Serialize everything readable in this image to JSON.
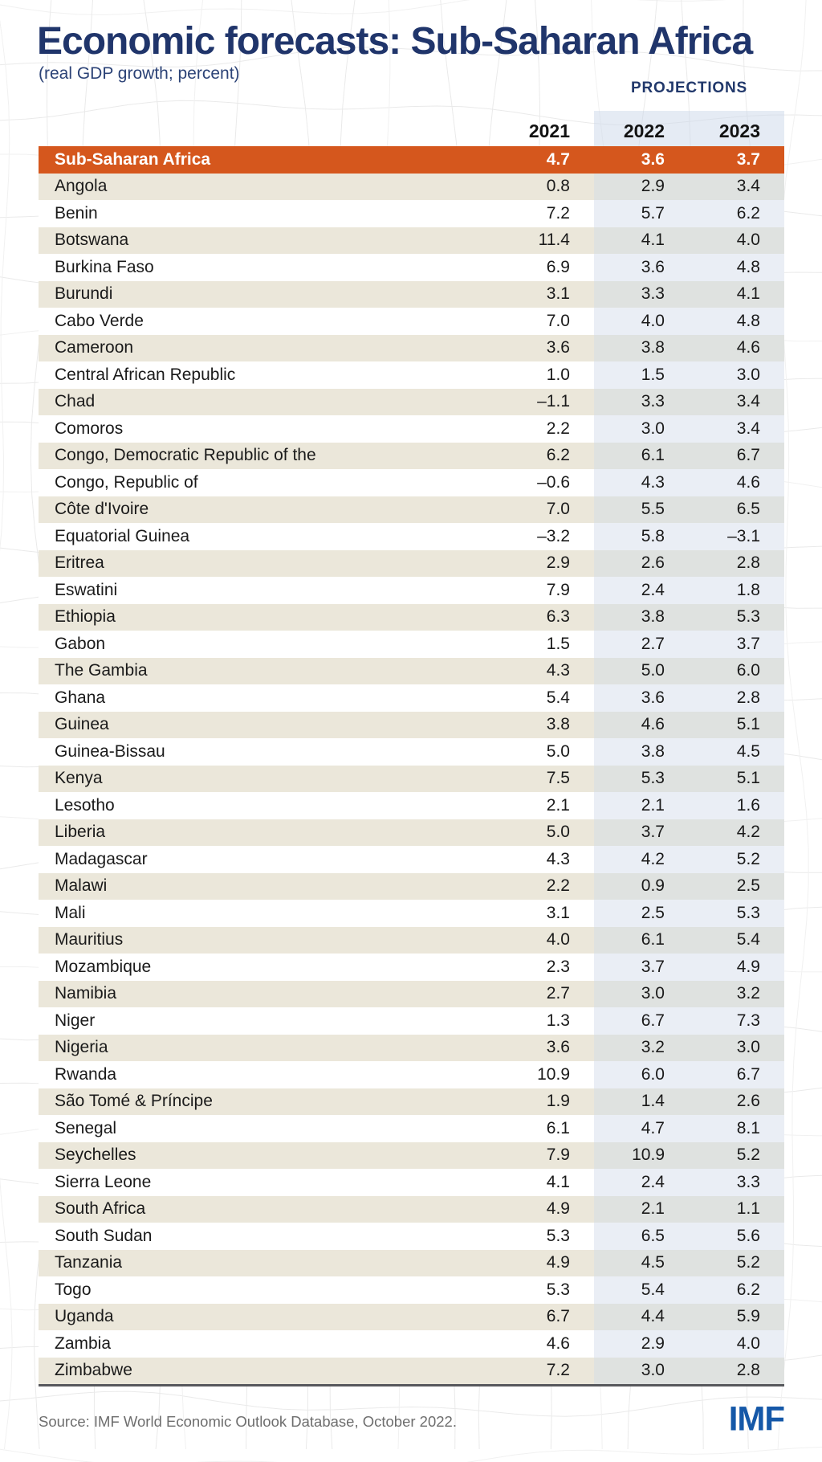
{
  "header": {
    "title": "Economic forecasts: Sub-Saharan Africa",
    "subtitle": "(real GDP growth; percent)"
  },
  "footer": {
    "source": "Source: IMF World Economic Outlook Database, October 2022.",
    "logo": "IMF"
  },
  "colors": {
    "accent_orange": "#D5571D",
    "title_navy": "#20356B",
    "subtitle_blue": "#2C4377",
    "projections_navy": "#21386B",
    "beige_row": "#EBE7DA",
    "beige_projection_cell": "#DFE2E0",
    "white_projection_cell": "#EAEEF5",
    "header_band_blue": "#CBD7E9",
    "bottom_border": "#57585C",
    "source_gray": "#6E6E6E",
    "logo_blue": "#1558A8"
  },
  "chart_data": {
    "type": "table",
    "title": "Economic forecasts: Sub-Saharan Africa",
    "subtitle": "(real GDP growth; percent)",
    "unit": "real GDP growth, percent",
    "projections_label": "PROJECTIONS",
    "columns": [
      "2021",
      "2022",
      "2023"
    ],
    "projection_columns": [
      "2022",
      "2023"
    ],
    "summary_row": {
      "label": "Sub-Saharan Africa",
      "values": [
        4.7,
        3.6,
        3.7
      ]
    },
    "rows": [
      [
        "Angola",
        0.8,
        2.9,
        3.4
      ],
      [
        "Benin",
        7.2,
        5.7,
        6.2
      ],
      [
        "Botswana",
        11.4,
        4.1,
        4.0
      ],
      [
        "Burkina Faso",
        6.9,
        3.6,
        4.8
      ],
      [
        "Burundi",
        3.1,
        3.3,
        4.1
      ],
      [
        "Cabo Verde",
        7.0,
        4.0,
        4.8
      ],
      [
        "Cameroon",
        3.6,
        3.8,
        4.6
      ],
      [
        "Central African Republic",
        1.0,
        1.5,
        3.0
      ],
      [
        "Chad",
        -1.1,
        3.3,
        3.4
      ],
      [
        "Comoros",
        2.2,
        3.0,
        3.4
      ],
      [
        "Congo, Democratic Republic of the",
        6.2,
        6.1,
        6.7
      ],
      [
        "Congo, Republic of",
        -0.6,
        4.3,
        4.6
      ],
      [
        "Côte d'Ivoire",
        7.0,
        5.5,
        6.5
      ],
      [
        "Equatorial Guinea",
        -3.2,
        5.8,
        -3.1
      ],
      [
        "Eritrea",
        2.9,
        2.6,
        2.8
      ],
      [
        "Eswatini",
        7.9,
        2.4,
        1.8
      ],
      [
        "Ethiopia",
        6.3,
        3.8,
        5.3
      ],
      [
        "Gabon",
        1.5,
        2.7,
        3.7
      ],
      [
        "The Gambia",
        4.3,
        5.0,
        6.0
      ],
      [
        "Ghana",
        5.4,
        3.6,
        2.8
      ],
      [
        "Guinea",
        3.8,
        4.6,
        5.1
      ],
      [
        "Guinea-Bissau",
        5.0,
        3.8,
        4.5
      ],
      [
        "Kenya",
        7.5,
        5.3,
        5.1
      ],
      [
        "Lesotho",
        2.1,
        2.1,
        1.6
      ],
      [
        "Liberia",
        5.0,
        3.7,
        4.2
      ],
      [
        "Madagascar",
        4.3,
        4.2,
        5.2
      ],
      [
        "Malawi",
        2.2,
        0.9,
        2.5
      ],
      [
        "Mali",
        3.1,
        2.5,
        5.3
      ],
      [
        "Mauritius",
        4.0,
        6.1,
        5.4
      ],
      [
        "Mozambique",
        2.3,
        3.7,
        4.9
      ],
      [
        "Namibia",
        2.7,
        3.0,
        3.2
      ],
      [
        "Niger",
        1.3,
        6.7,
        7.3
      ],
      [
        "Nigeria",
        3.6,
        3.2,
        3.0
      ],
      [
        "Rwanda",
        10.9,
        6.0,
        6.7
      ],
      [
        "São Tomé & Príncipe",
        1.9,
        1.4,
        2.6
      ],
      [
        "Senegal",
        6.1,
        4.7,
        8.1
      ],
      [
        "Seychelles",
        7.9,
        10.9,
        5.2
      ],
      [
        "Sierra Leone",
        4.1,
        2.4,
        3.3
      ],
      [
        "South Africa",
        4.9,
        2.1,
        1.1
      ],
      [
        "South Sudan",
        5.3,
        6.5,
        5.6
      ],
      [
        "Tanzania",
        4.9,
        4.5,
        5.2
      ],
      [
        "Togo",
        5.3,
        5.4,
        6.2
      ],
      [
        "Uganda",
        6.7,
        4.4,
        5.9
      ],
      [
        "Zambia",
        4.6,
        2.9,
        4.0
      ],
      [
        "Zimbabwe",
        7.2,
        3.0,
        2.8
      ]
    ]
  }
}
